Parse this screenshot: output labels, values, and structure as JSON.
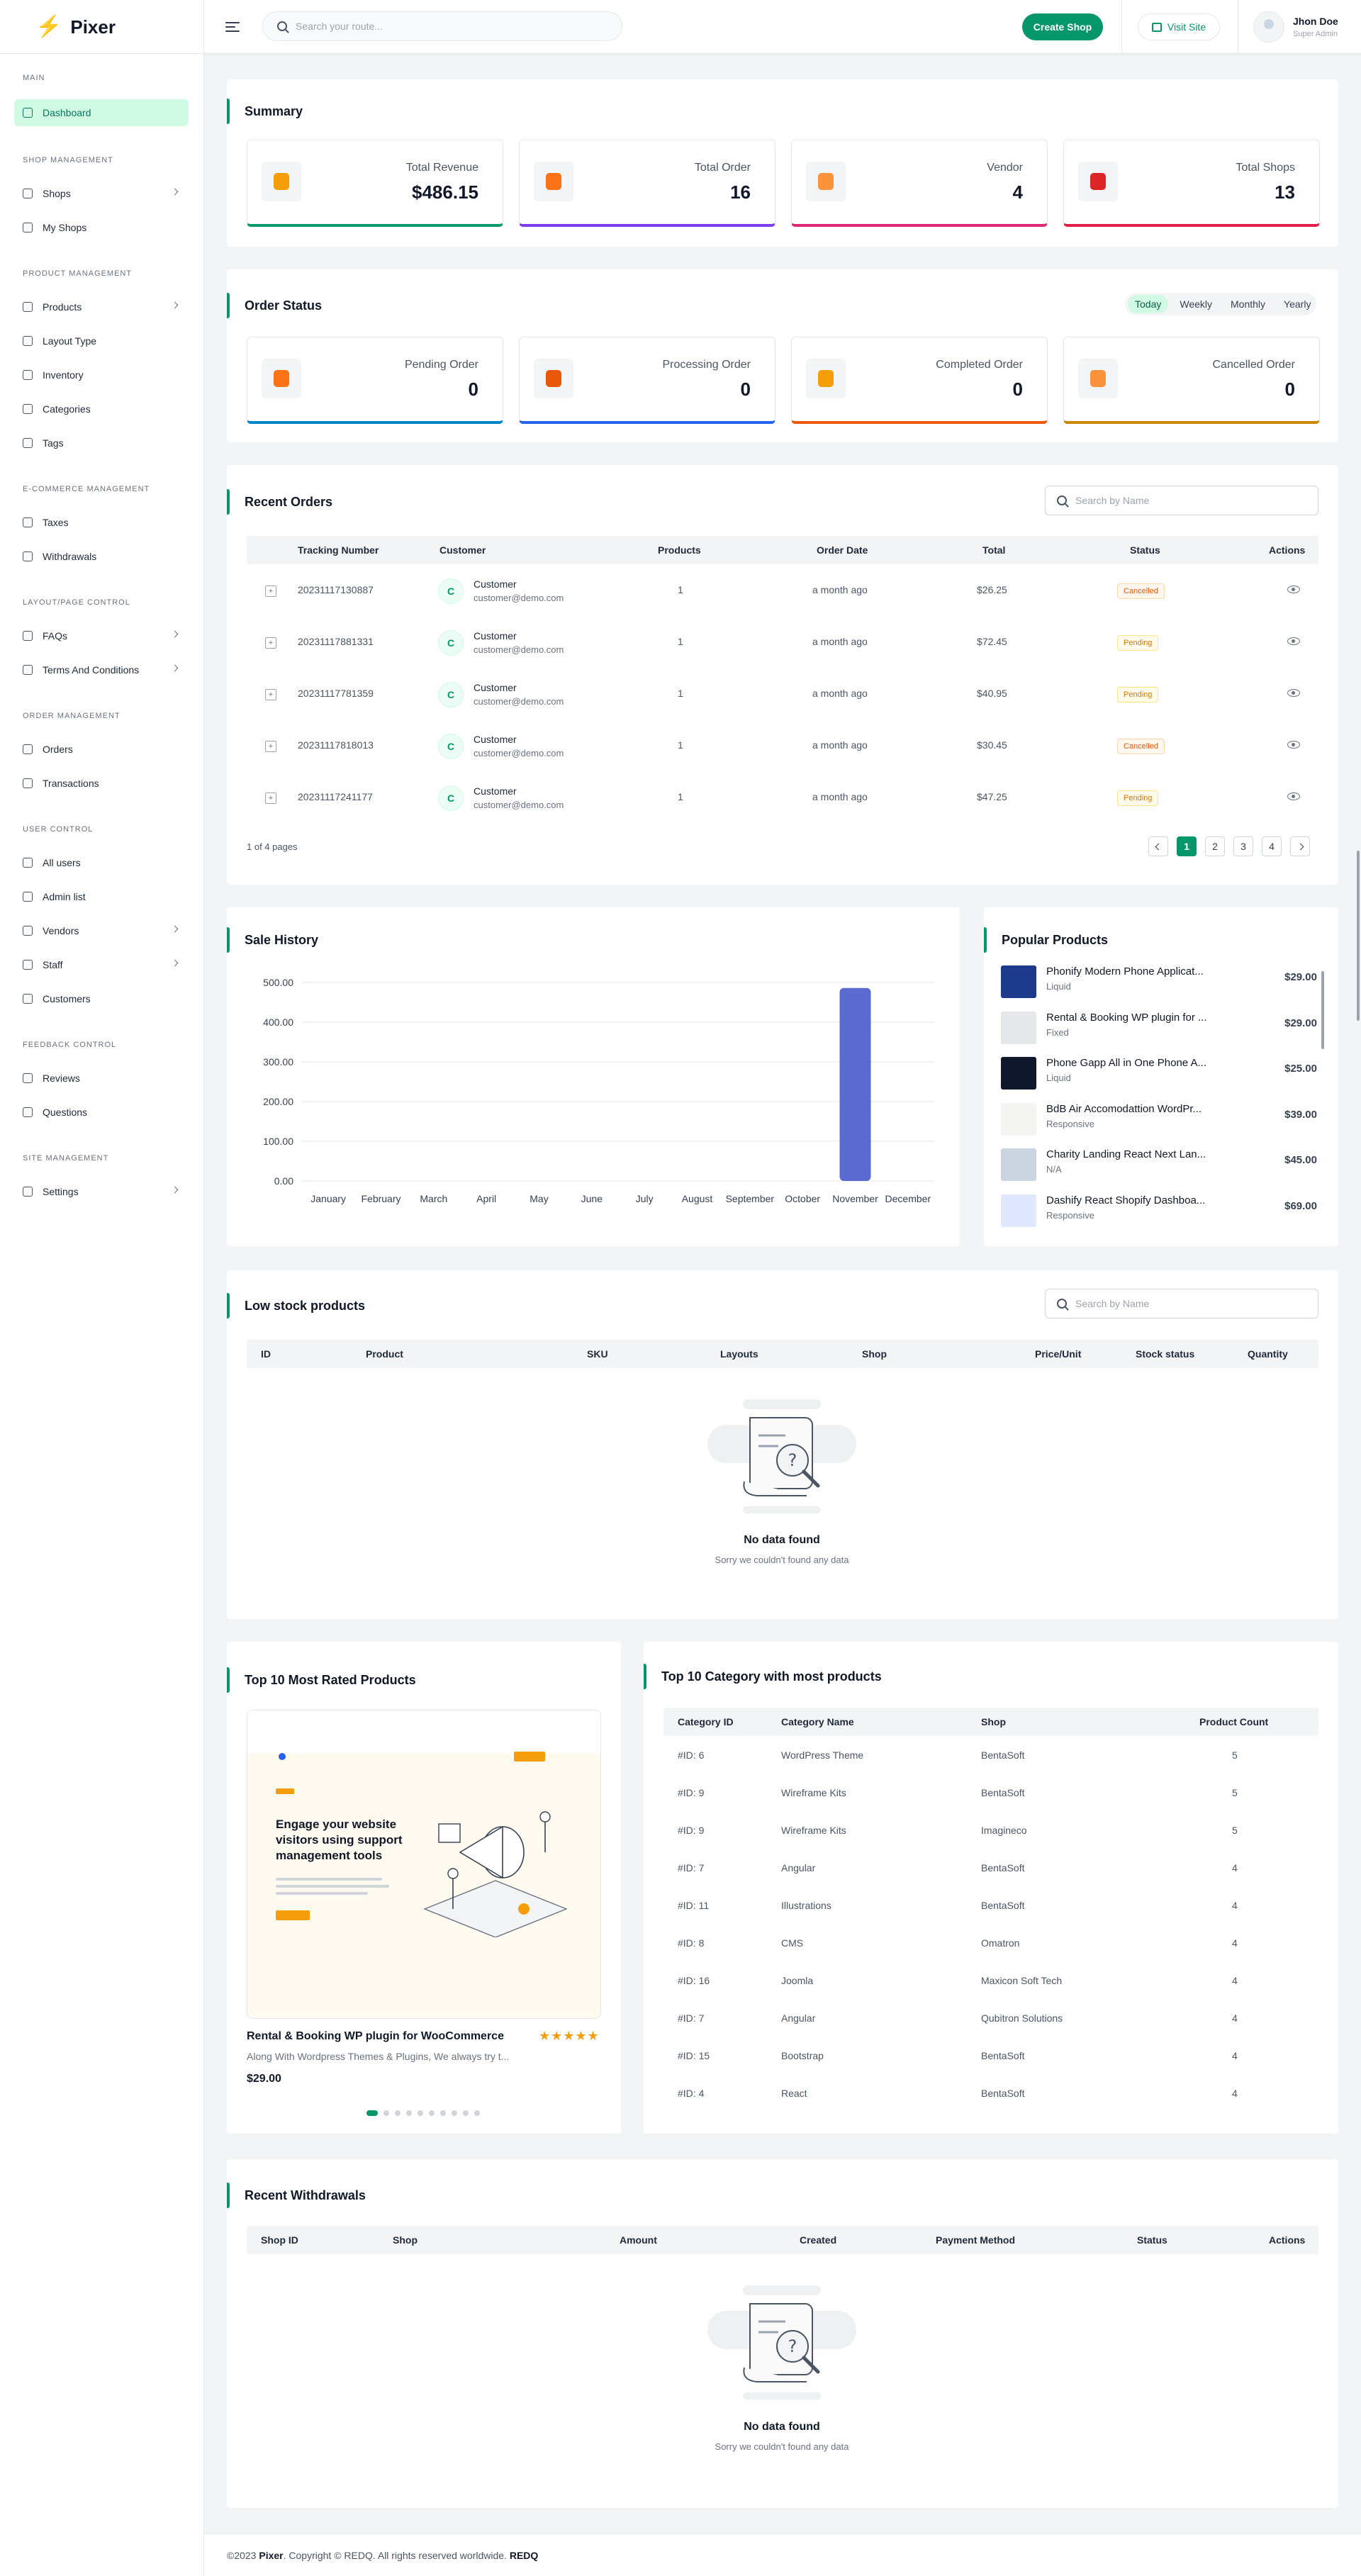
{
  "brand": {
    "name": "Pixer"
  },
  "header": {
    "search_placeholder": "Search your route...",
    "create_shop": "Create Shop",
    "visit_site": "Visit Site",
    "user_name": "Jhon Doe",
    "user_role": "Super Admin"
  },
  "sidebar": {
    "main": "MAIN",
    "dashboard": "Dashboard",
    "shop_management": "SHOP MANAGEMENT",
    "shops": "Shops",
    "my_shops": "My Shops",
    "product_management": "PRODUCT MANAGEMENT",
    "products": "Products",
    "layout_type": "Layout Type",
    "inventory": "Inventory",
    "categories": "Categories",
    "tags": "Tags",
    "ecommerce_management": "E-COMMERCE MANAGEMENT",
    "taxes": "Taxes",
    "withdrawals": "Withdrawals",
    "layout_page_control": "LAYOUT/PAGE CONTROL",
    "faqs": "FAQs",
    "terms": "Terms And Conditions",
    "order_management": "ORDER MANAGEMENT",
    "orders": "Orders",
    "transactions": "Transactions",
    "user_control": "USER CONTROL",
    "all_users": "All users",
    "admin_list": "Admin list",
    "vendors": "Vendors",
    "staff": "Staff",
    "customers": "Customers",
    "feedback_control": "FEEDBACK CONTROL",
    "reviews": "Reviews",
    "questions": "Questions",
    "site_management": "SITE MANAGEMENT",
    "settings": "Settings"
  },
  "summary": {
    "title": "Summary",
    "revenue_label": "Total Revenue",
    "revenue_value": "$486.15",
    "order_label": "Total Order",
    "order_value": "16",
    "vendor_label": "Vendor",
    "vendor_value": "4",
    "shops_label": "Total Shops",
    "shops_value": "13"
  },
  "order_status": {
    "title": "Order Status",
    "tab_today": "Today",
    "tab_weekly": "Weekly",
    "tab_monthly": "Monthly",
    "tab_yearly": "Yearly",
    "pending_label": "Pending Order",
    "pending_value": "0",
    "processing_label": "Processing Order",
    "processing_value": "0",
    "completed_label": "Completed Order",
    "completed_value": "0",
    "cancelled_label": "Cancelled Order",
    "cancelled_value": "0"
  },
  "recent_orders": {
    "title": "Recent Orders",
    "search_placeholder": "Search by Name",
    "col_tracking": "Tracking Number",
    "col_customer": "Customer",
    "col_products": "Products",
    "col_date": "Order Date",
    "col_total": "Total",
    "col_status": "Status",
    "col_actions": "Actions",
    "rows": [
      {
        "tracking": "20231117130887",
        "name": "Customer",
        "email": "customer@demo.com",
        "products": "1",
        "date": "a month ago",
        "total": "$26.25",
        "status": "Cancelled"
      },
      {
        "tracking": "20231117881331",
        "name": "Customer",
        "email": "customer@demo.com",
        "products": "1",
        "date": "a month ago",
        "total": "$72.45",
        "status": "Pending"
      },
      {
        "tracking": "20231117781359",
        "name": "Customer",
        "email": "customer@demo.com",
        "products": "1",
        "date": "a month ago",
        "total": "$40.95",
        "status": "Pending"
      },
      {
        "tracking": "20231117818013",
        "name": "Customer",
        "email": "customer@demo.com",
        "products": "1",
        "date": "a month ago",
        "total": "$30.45",
        "status": "Cancelled"
      },
      {
        "tracking": "20231117241177",
        "name": "Customer",
        "email": "customer@demo.com",
        "products": "1",
        "date": "a month ago",
        "total": "$47.25",
        "status": "Pending"
      }
    ],
    "page_info": "1 of 4 pages",
    "pages": [
      "1",
      "2",
      "3",
      "4"
    ]
  },
  "sale_history": {
    "title": "Sale History"
  },
  "chart_data": {
    "type": "bar",
    "categories": [
      "January",
      "February",
      "March",
      "April",
      "May",
      "June",
      "July",
      "August",
      "September",
      "October",
      "November",
      "December"
    ],
    "values": [
      0,
      0,
      0,
      0,
      0,
      0,
      0,
      0,
      0,
      0,
      486.15,
      0
    ],
    "ylim": [
      0,
      500
    ],
    "yticks": [
      "0.00",
      "100.00",
      "200.00",
      "300.00",
      "400.00",
      "500.00"
    ],
    "grid": true,
    "bar_color": "#5b6ad0"
  },
  "popular_products": {
    "title": "Popular Products",
    "items": [
      {
        "name": "Phonify Modern Phone Applicat...",
        "category": "Liquid",
        "price": "$29.00"
      },
      {
        "name": "Rental & Booking WP plugin for ...",
        "category": "Fixed",
        "price": "$29.00"
      },
      {
        "name": "Phone Gapp All in One Phone A...",
        "category": "Liquid",
        "price": "$25.00"
      },
      {
        "name": "BdB Air Accomodattion WordPr...",
        "category": "Responsive",
        "price": "$39.00"
      },
      {
        "name": "Charity Landing React Next Lan...",
        "category": "N/A",
        "price": "$45.00"
      },
      {
        "name": "Dashify React Shopify Dashboa...",
        "category": "Responsive",
        "price": "$69.00"
      }
    ]
  },
  "low_stock": {
    "title": "Low stock products",
    "search_placeholder": "Search by Name",
    "col_id": "ID",
    "col_product": "Product",
    "col_sku": "SKU",
    "col_layouts": "Layouts",
    "col_shop": "Shop",
    "col_price": "Price/Unit",
    "col_stock": "Stock status",
    "col_quantity": "Quantity",
    "empty_title": "No data found",
    "empty_sub": "Sorry we couldn't found any data"
  },
  "top_rated": {
    "title": "Top 10 Most Rated Products",
    "product_name": "Rental & Booking WP plugin for WooCommerce",
    "product_desc": "Along With Wordpress Themes & Plugins, We always try t...",
    "product_price": "$29.00",
    "stars": "★★★★★",
    "preview_headline": "Engage your website visitors using support management tools"
  },
  "top_category": {
    "title": "Top 10 Category with most products",
    "col_id": "Category ID",
    "col_name": "Category Name",
    "col_shop": "Shop",
    "col_count": "Product Count",
    "rows": [
      {
        "id": "#ID: 6",
        "name": "WordPress Theme",
        "shop": "BentaSoft",
        "count": "5"
      },
      {
        "id": "#ID: 9",
        "name": "Wireframe Kits",
        "shop": "BentaSoft",
        "count": "5"
      },
      {
        "id": "#ID: 9",
        "name": "Wireframe Kits",
        "shop": "Imagineco",
        "count": "5"
      },
      {
        "id": "#ID: 7",
        "name": "Angular",
        "shop": "BentaSoft",
        "count": "4"
      },
      {
        "id": "#ID: 11",
        "name": "Illustrations",
        "shop": "BentaSoft",
        "count": "4"
      },
      {
        "id": "#ID: 8",
        "name": "CMS",
        "shop": "Omatron",
        "count": "4"
      },
      {
        "id": "#ID: 16",
        "name": "Joomla",
        "shop": "Maxicon Soft Tech",
        "count": "4"
      },
      {
        "id": "#ID: 7",
        "name": "Angular",
        "shop": "Qubitron Solutions",
        "count": "4"
      },
      {
        "id": "#ID: 15",
        "name": "Bootstrap",
        "shop": "BentaSoft",
        "count": "4"
      },
      {
        "id": "#ID: 4",
        "name": "React",
        "shop": "BentaSoft",
        "count": "4"
      }
    ]
  },
  "recent_withdrawals": {
    "title": "Recent Withdrawals",
    "col_shop_id": "Shop ID",
    "col_shop": "Shop",
    "col_amount": "Amount",
    "col_created": "Created",
    "col_payment": "Payment Method",
    "col_status": "Status",
    "col_actions": "Actions",
    "empty_title": "No data found",
    "empty_sub": "Sorry we couldn't found any data"
  },
  "footer": {
    "prefix": "©2023 ",
    "brand": "Pixer",
    "middle": ". Copyright © REDQ. All rights reserved worldwide. ",
    "company": "REDQ"
  },
  "colors": {
    "accent": "#059669",
    "revenue": "#059669",
    "order": "#7c3aed",
    "vendor": "#db2777",
    "shops": "#e11d48",
    "pending": "#0284c7",
    "processing": "#2563eb",
    "completed": "#ea580c",
    "cancelled": "#ca8a04"
  }
}
